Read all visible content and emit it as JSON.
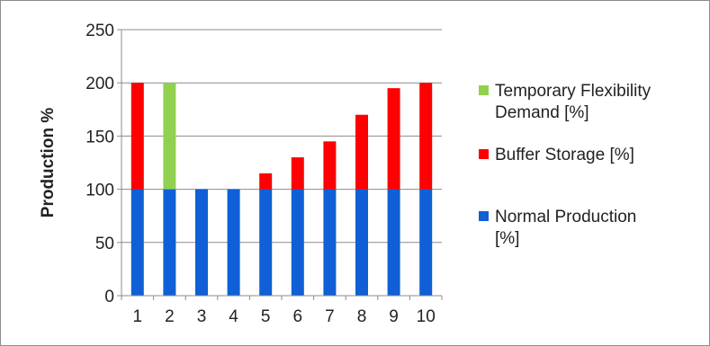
{
  "chart_data": {
    "type": "bar",
    "stacked": true,
    "categories": [
      "1",
      "2",
      "3",
      "4",
      "5",
      "6",
      "7",
      "8",
      "9",
      "10"
    ],
    "series": [
      {
        "name": "Normal Production [%]",
        "color": "#0f5fd6",
        "values": [
          100,
          100,
          100,
          100,
          100,
          100,
          100,
          100,
          100,
          100
        ]
      },
      {
        "name": "Buffer Storage [%]",
        "color": "#ff0000",
        "values": [
          100,
          0,
          0,
          0,
          15,
          30,
          45,
          70,
          95,
          100
        ]
      },
      {
        "name": "Temporary Flexibility Demand [%]",
        "color": "#92d050",
        "values": [
          0,
          100,
          0,
          0,
          0,
          0,
          0,
          0,
          0,
          0
        ]
      }
    ],
    "legend_order": [
      2,
      1,
      0
    ],
    "legend_lines": [
      [
        "Temporary Flexibility",
        "Demand [%]"
      ],
      [
        "Buffer Storage [%]"
      ],
      [
        "Normal Production",
        "[%]"
      ]
    ],
    "title": "",
    "xlabel": "",
    "ylabel": "Production %",
    "ylim": [
      0,
      250
    ],
    "yticks": [
      0,
      50,
      100,
      150,
      200,
      250
    ],
    "grid": true,
    "legend_position": "right"
  }
}
